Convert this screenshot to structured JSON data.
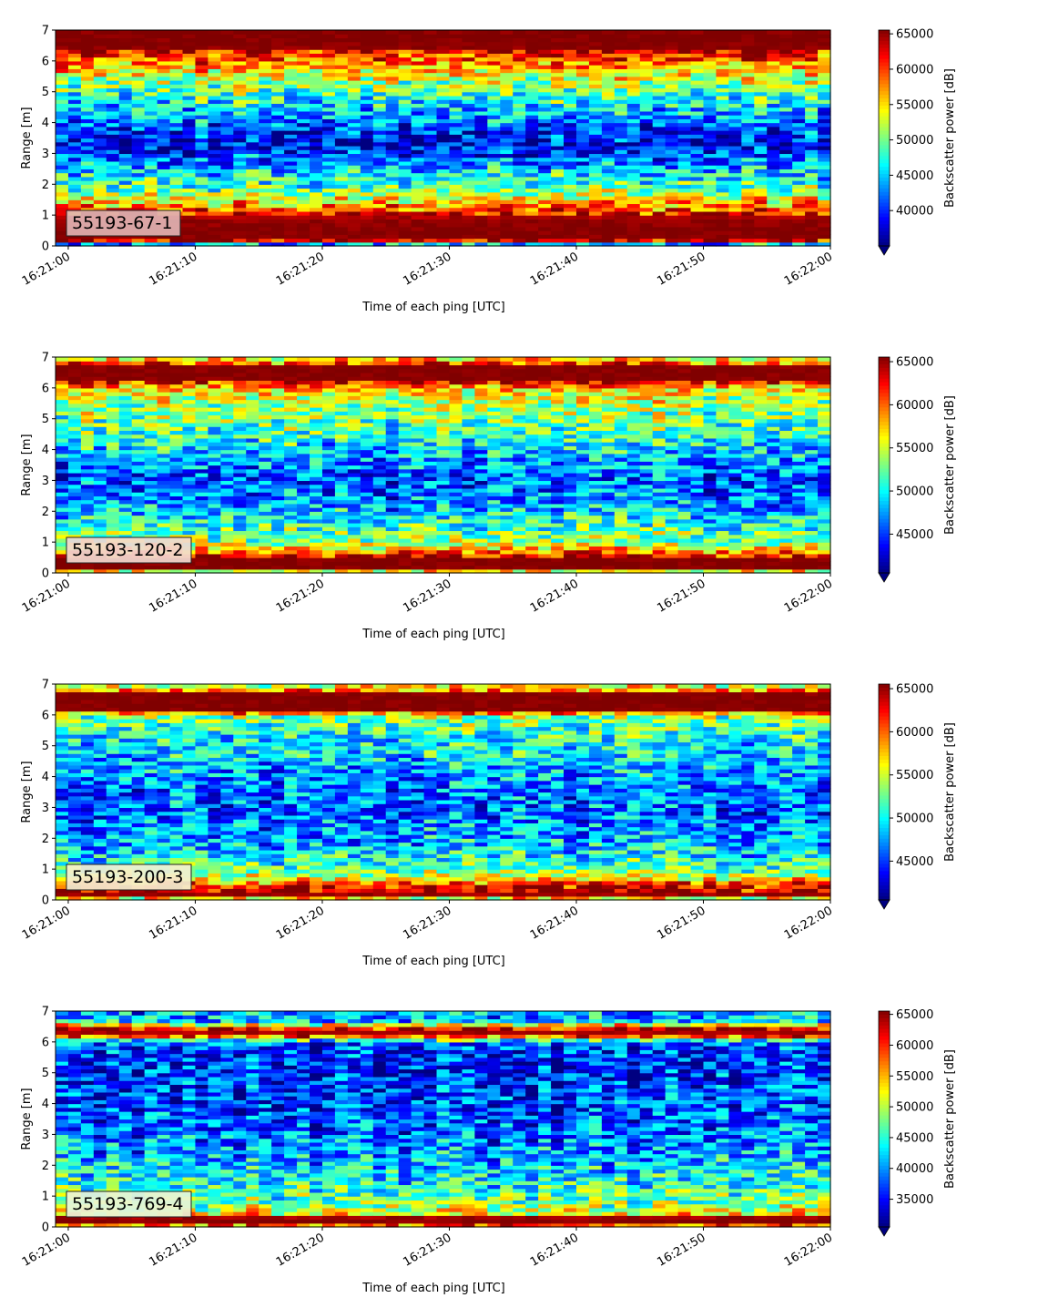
{
  "figure": {
    "shared": {
      "xlabel": "Time of each ping [UTC]",
      "ylabel": "Range [m]",
      "colorbar_label": "Backscatter power [dB]",
      "x_ticks": [
        "16:21:00",
        "16:21:10",
        "16:21:20",
        "16:21:30",
        "16:21:40",
        "16:21:50",
        "16:22:00"
      ],
      "y_ticks": [
        "0",
        "1",
        "2",
        "3",
        "4",
        "5",
        "6",
        "7"
      ],
      "colormap": "jet",
      "colorbar_extend": "min"
    }
  },
  "chart_data": [
    {
      "type": "heatmap",
      "label": "55193-67-1",
      "label_box_color": "#e0b3b3",
      "xlabel": "Time of each ping [UTC]",
      "ylabel": "Range [m]",
      "x_ticks": [
        "16:21:00",
        "16:21:10",
        "16:21:20",
        "16:21:30",
        "16:21:40",
        "16:21:50",
        "16:22:00"
      ],
      "x_range": [
        "16:20:59",
        "16:22:00"
      ],
      "ylim": [
        0,
        7
      ],
      "colorbar": {
        "label": "Backscatter power [dB]",
        "min": 35000,
        "max": 65535,
        "ticks": [
          40000,
          45000,
          50000,
          55000,
          60000,
          65000
        ]
      },
      "range_profile_m": [
        [
          0.0,
          35000
        ],
        [
          0.2,
          65535
        ],
        [
          0.5,
          65535
        ],
        [
          0.9,
          65000
        ],
        [
          1.15,
          60000
        ],
        [
          1.4,
          56000
        ],
        [
          1.8,
          50000
        ],
        [
          2.2,
          47000
        ],
        [
          2.6,
          44000
        ],
        [
          3.0,
          40000
        ],
        [
          3.4,
          38500
        ],
        [
          3.8,
          41000
        ],
        [
          4.2,
          44000
        ],
        [
          4.6,
          46500
        ],
        [
          5.0,
          49000
        ],
        [
          5.4,
          52500
        ],
        [
          5.8,
          56500
        ],
        [
          6.2,
          60500
        ],
        [
          6.45,
          65535
        ],
        [
          7.0,
          65535
        ]
      ]
    },
    {
      "type": "heatmap",
      "label": "55193-120-2",
      "label_box_color": "#f2d9d0",
      "xlabel": "Time of each ping [UTC]",
      "ylabel": "Range [m]",
      "x_ticks": [
        "16:21:00",
        "16:21:10",
        "16:21:20",
        "16:21:30",
        "16:21:40",
        "16:21:50",
        "16:22:00"
      ],
      "x_range": [
        "16:20:59",
        "16:22:00"
      ],
      "ylim": [
        0,
        7
      ],
      "colorbar": {
        "label": "Backscatter power [dB]",
        "min": 40500,
        "max": 65535,
        "ticks": [
          45000,
          50000,
          55000,
          60000,
          65000
        ]
      },
      "range_profile_m": [
        [
          0.0,
          40500
        ],
        [
          0.1,
          65535
        ],
        [
          0.45,
          65535
        ],
        [
          0.7,
          59000
        ],
        [
          1.0,
          54000
        ],
        [
          1.5,
          51000
        ],
        [
          2.0,
          48500
        ],
        [
          2.5,
          46500
        ],
        [
          3.0,
          45500
        ],
        [
          3.5,
          47000
        ],
        [
          4.0,
          49000
        ],
        [
          4.5,
          51000
        ],
        [
          5.0,
          52500
        ],
        [
          5.5,
          54000
        ],
        [
          6.0,
          56500
        ],
        [
          6.3,
          65535
        ],
        [
          6.7,
          65535
        ],
        [
          6.85,
          58000
        ],
        [
          7.0,
          56000
        ]
      ]
    },
    {
      "type": "heatmap",
      "label": "55193-200-3",
      "label_box_color": "#f4f0d0",
      "xlabel": "Time of each ping [UTC]",
      "ylabel": "Range [m]",
      "x_ticks": [
        "16:21:00",
        "16:21:10",
        "16:21:20",
        "16:21:30",
        "16:21:40",
        "16:21:50",
        "16:22:00"
      ],
      "x_range": [
        "16:20:59",
        "16:22:00"
      ],
      "ylim": [
        0,
        7
      ],
      "colorbar": {
        "label": "Backscatter power [dB]",
        "min": 40500,
        "max": 65535,
        "ticks": [
          45000,
          50000,
          55000,
          60000,
          65000
        ]
      },
      "range_profile_m": [
        [
          0.0,
          40500
        ],
        [
          0.1,
          65535
        ],
        [
          0.45,
          63000
        ],
        [
          0.7,
          56000
        ],
        [
          1.0,
          52000
        ],
        [
          1.5,
          49500
        ],
        [
          2.0,
          47500
        ],
        [
          2.5,
          46500
        ],
        [
          3.0,
          46000
        ],
        [
          3.5,
          46500
        ],
        [
          4.0,
          47500
        ],
        [
          4.5,
          48500
        ],
        [
          5.0,
          49500
        ],
        [
          5.5,
          51000
        ],
        [
          6.0,
          53500
        ],
        [
          6.15,
          65535
        ],
        [
          6.7,
          65535
        ],
        [
          6.85,
          57000
        ],
        [
          7.0,
          55000
        ]
      ]
    },
    {
      "type": "heatmap",
      "label": "55193-769-4",
      "label_box_color": "#e8f4d8",
      "xlabel": "Time of each ping [UTC]",
      "ylabel": "Range [m]",
      "x_ticks": [
        "16:21:00",
        "16:21:10",
        "16:21:20",
        "16:21:30",
        "16:21:40",
        "16:21:50",
        "16:22:00"
      ],
      "x_range": [
        "16:20:59",
        "16:22:00"
      ],
      "ylim": [
        0,
        7
      ],
      "colorbar": {
        "label": "Backscatter power [dB]",
        "min": 30500,
        "max": 65535,
        "ticks": [
          35000,
          40000,
          45000,
          50000,
          55000,
          60000,
          65000
        ]
      },
      "range_profile_m": [
        [
          0.0,
          30500
        ],
        [
          0.08,
          65535
        ],
        [
          0.3,
          65535
        ],
        [
          0.45,
          52000
        ],
        [
          0.8,
          47000
        ],
        [
          1.5,
          44000
        ],
        [
          2.0,
          42000
        ],
        [
          2.5,
          40000
        ],
        [
          3.0,
          38500
        ],
        [
          3.5,
          37500
        ],
        [
          4.0,
          37000
        ],
        [
          4.5,
          36500
        ],
        [
          5.0,
          36000
        ],
        [
          5.5,
          36000
        ],
        [
          6.0,
          37500
        ],
        [
          6.2,
          60000
        ],
        [
          6.35,
          65535
        ],
        [
          6.5,
          60000
        ],
        [
          6.65,
          42000
        ],
        [
          7.0,
          40000
        ]
      ]
    }
  ]
}
